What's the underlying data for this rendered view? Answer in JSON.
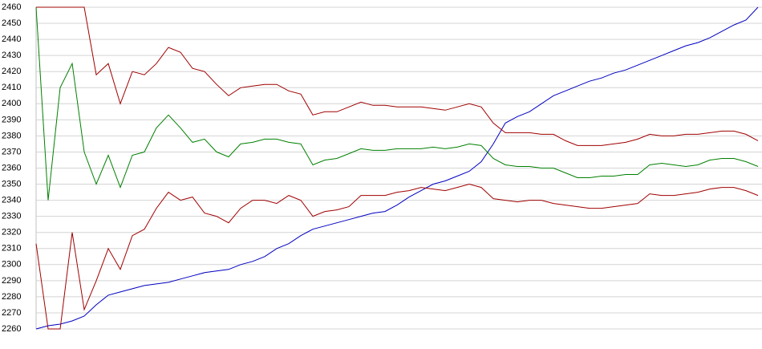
{
  "chart_data": {
    "type": "line",
    "categories": [
      null,
      null,
      null,
      null,
      null,
      null,
      null,
      null,
      null,
      null,
      null,
      null,
      null,
      null,
      null,
      null,
      null,
      null,
      null,
      null,
      null,
      null,
      null,
      null,
      null,
      null,
      null,
      null,
      null,
      null,
      null,
      null,
      null,
      null,
      null,
      null,
      null,
      null,
      null,
      null,
      null,
      null,
      null,
      null,
      null,
      null,
      null,
      null,
      null,
      null,
      null,
      null,
      null,
      null,
      null,
      null,
      null,
      null,
      null,
      null,
      null
    ],
    "series": [
      {
        "color": "#0000c0",
        "values": [
          2260,
          2262,
          2263,
          2265,
          2268,
          2275,
          2281,
          2283,
          2285,
          2287,
          2288,
          2289,
          2291,
          2293,
          2295,
          2296,
          2297,
          2300,
          2302,
          2305,
          2310,
          2313,
          2318,
          2322,
          2324,
          2326,
          2328,
          2330,
          2332,
          2333,
          2337,
          2342,
          2346,
          2350,
          2352,
          2355,
          2358,
          2364,
          2375,
          2388,
          2392,
          2395,
          2400,
          2405,
          2408,
          2411,
          2414,
          2416,
          2419,
          2421,
          2424,
          2427,
          2430,
          2433,
          2436,
          2438,
          2441,
          2445,
          2449,
          2452,
          2460
        ]
      },
      {
        "color": "#008000",
        "values": [
          2460,
          2340,
          2410,
          2425,
          2370,
          2350,
          2368,
          2348,
          2368,
          2370,
          2385,
          2393,
          2385,
          2376,
          2378,
          2370,
          2367,
          2375,
          2376,
          2378,
          2378,
          2376,
          2375,
          2362,
          2365,
          2366,
          2369,
          2372,
          2371,
          2371,
          2372,
          2372,
          2372,
          2373,
          2372,
          2373,
          2375,
          2374,
          2366,
          2362,
          2361,
          2361,
          2360,
          2360,
          2357,
          2354,
          2354,
          2355,
          2355,
          2356,
          2356,
          2362,
          2363,
          2362,
          2361,
          2362,
          2365,
          2366,
          2366,
          2364,
          2361
        ]
      },
      {
        "color": "#a00000",
        "values": [
          2460,
          2460,
          2460,
          2460,
          2460,
          2418,
          2425,
          2400,
          2420,
          2418,
          2425,
          2435,
          2432,
          2422,
          2420,
          2412,
          2405,
          2410,
          2411,
          2412,
          2412,
          2408,
          2406,
          2393,
          2395,
          2395,
          2398,
          2401,
          2399,
          2399,
          2398,
          2398,
          2398,
          2397,
          2396,
          2398,
          2400,
          2398,
          2388,
          2382,
          2382,
          2382,
          2381,
          2381,
          2377,
          2374,
          2374,
          2374,
          2375,
          2376,
          2378,
          2381,
          2380,
          2380,
          2381,
          2381,
          2382,
          2383,
          2383,
          2381,
          2377
        ]
      },
      {
        "color": "#a00000",
        "values": [
          2313,
          2260,
          2260,
          2320,
          2272,
          2290,
          2310,
          2297,
          2318,
          2322,
          2335,
          2345,
          2340,
          2342,
          2332,
          2330,
          2326,
          2335,
          2340,
          2340,
          2338,
          2343,
          2340,
          2330,
          2333,
          2334,
          2336,
          2343,
          2343,
          2343,
          2345,
          2346,
          2348,
          2347,
          2346,
          2348,
          2350,
          2348,
          2341,
          2340,
          2339,
          2340,
          2340,
          2338,
          2337,
          2336,
          2335,
          2335,
          2336,
          2337,
          2338,
          2344,
          2343,
          2343,
          2344,
          2345,
          2347,
          2348,
          2348,
          2346,
          2343
        ]
      }
    ],
    "ylim": [
      2260,
      2460
    ],
    "yticks": [
      2260,
      2270,
      2280,
      2290,
      2300,
      2310,
      2320,
      2330,
      2340,
      2350,
      2360,
      2370,
      2380,
      2390,
      2400,
      2410,
      2420,
      2430,
      2440,
      2450,
      2460
    ],
    "grid": true
  }
}
